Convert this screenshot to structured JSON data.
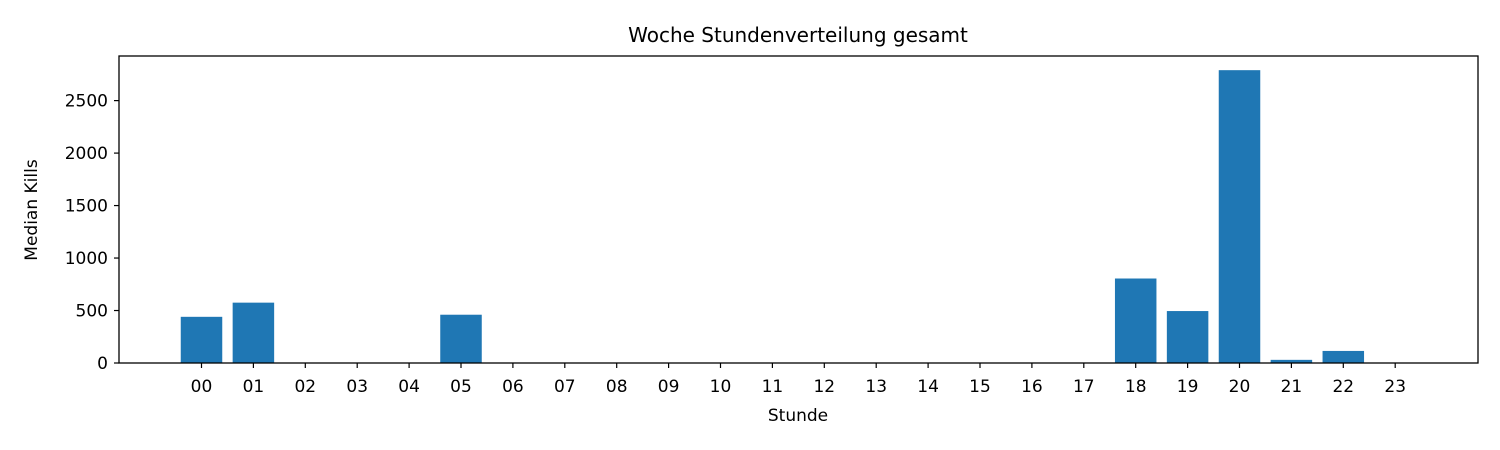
{
  "chart_data": {
    "type": "bar",
    "title": "Woche Stundenverteilung gesamt",
    "xlabel": "Stunde",
    "ylabel": "Median Kills",
    "categories": [
      "00",
      "01",
      "02",
      "03",
      "04",
      "05",
      "06",
      "07",
      "08",
      "09",
      "10",
      "11",
      "12",
      "13",
      "14",
      "15",
      "16",
      "17",
      "18",
      "19",
      "20",
      "21",
      "22",
      "23"
    ],
    "values": [
      440,
      575,
      0,
      0,
      0,
      460,
      0,
      0,
      0,
      0,
      0,
      0,
      0,
      0,
      0,
      0,
      0,
      0,
      805,
      495,
      2790,
      30,
      115,
      0
    ],
    "ylim": [
      0,
      2925
    ],
    "yticks": [
      0,
      500,
      1000,
      1500,
      2000,
      2500
    ],
    "bar_color": "#1f77b4",
    "grid": false,
    "legend": "none"
  }
}
